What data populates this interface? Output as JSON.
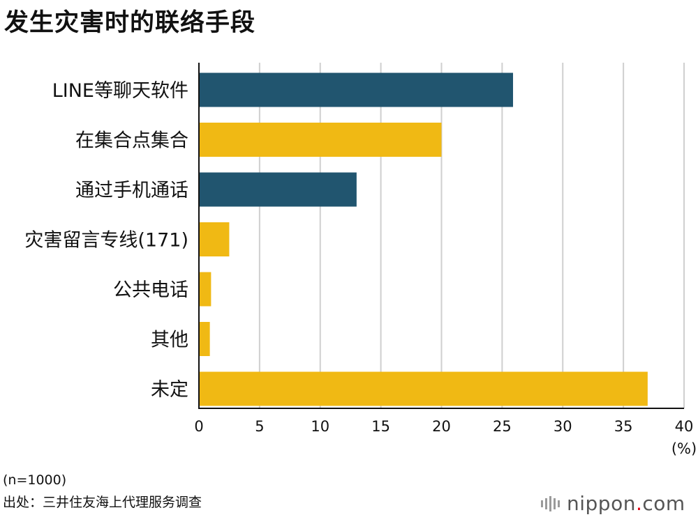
{
  "title": "发生灾害时的联络手段",
  "chart_data": {
    "type": "bar",
    "orientation": "horizontal",
    "title": "发生灾害时的联络手段",
    "categories": [
      "LINE等聊天软件",
      "在集合点集合",
      "通过手机通话",
      "灾害留言专线(171)",
      "公共电话",
      "其他",
      "未定"
    ],
    "values": [
      25.9,
      20.0,
      13.0,
      2.5,
      1.0,
      0.9,
      37.0
    ],
    "bar_colors": [
      "#21556f",
      "#f0b914",
      "#21556f",
      "#f0b914",
      "#f0b914",
      "#f0b914",
      "#f0b914"
    ],
    "xlim": [
      0,
      40
    ],
    "xticks": [
      "0",
      "5",
      "10",
      "15",
      "20",
      "25",
      "30",
      "35",
      "40"
    ],
    "xunit": "(%)",
    "grid": "vertical",
    "legend": "none"
  },
  "notes": {
    "sample": "(n=1000)",
    "source": "出处：三井住友海上代理服务调查"
  },
  "brand": {
    "name_main": "nippon",
    "dot": ".",
    "name_tail": "com"
  }
}
